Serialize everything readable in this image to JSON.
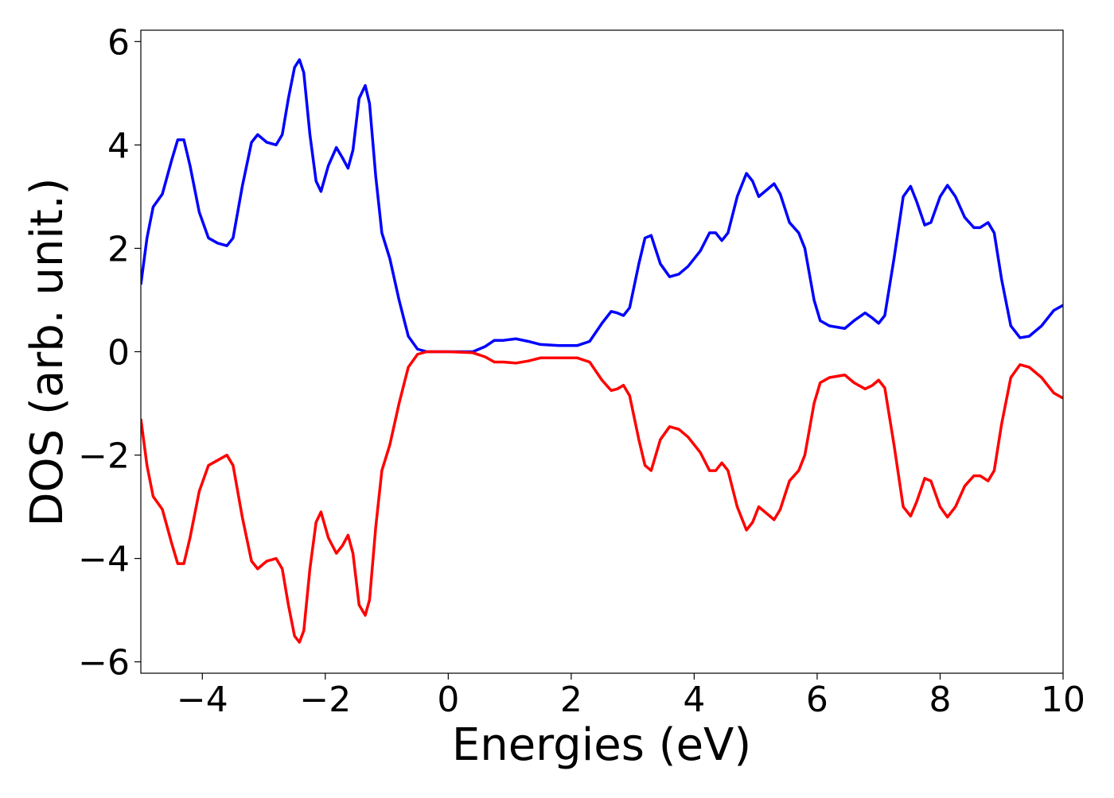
{
  "chart_data": {
    "type": "line",
    "xlabel": "Energies (eV)",
    "ylabel": "DOS (arb. unit.)",
    "xlim": [
      -5,
      10
    ],
    "ylim": [
      -6.22,
      6.22
    ],
    "xticks": [
      {
        "value": -4,
        "label": "−4"
      },
      {
        "value": -2,
        "label": "−2"
      },
      0,
      2,
      4,
      6,
      8,
      10
    ],
    "yticks": [
      {
        "value": -6,
        "label": "−6"
      },
      {
        "value": -4,
        "label": "−4"
      },
      {
        "value": -2,
        "label": "−2"
      },
      0,
      2,
      4,
      6
    ],
    "x": [
      -5,
      -4.9,
      -4.8,
      -4.65,
      -4.5,
      -4.4,
      -4.3,
      -4.2,
      -4.05,
      -3.9,
      -3.75,
      -3.6,
      -3.5,
      -3.35,
      -3.2,
      -3.1,
      -2.95,
      -2.8,
      -2.7,
      -2.6,
      -2.5,
      -2.42,
      -2.35,
      -2.25,
      -2.15,
      -2.07,
      -1.95,
      -1.82,
      -1.72,
      -1.63,
      -1.55,
      -1.45,
      -1.35,
      -1.28,
      -1.18,
      -1.08,
      -0.95,
      -0.8,
      -0.65,
      -0.5,
      -0.35,
      0,
      0.4,
      0.6,
      0.75,
      0.9,
      1.1,
      1.3,
      1.5,
      1.8,
      2.1,
      2.3,
      2.5,
      2.65,
      2.75,
      2.85,
      2.95,
      3.1,
      3.2,
      3.3,
      3.45,
      3.6,
      3.75,
      3.9,
      4.1,
      4.25,
      4.35,
      4.45,
      4.55,
      4.7,
      4.85,
      4.95,
      5.05,
      5.15,
      5.3,
      5.4,
      5.55,
      5.7,
      5.8,
      5.95,
      6.05,
      6.2,
      6.45,
      6.6,
      6.78,
      6.9,
      7.0,
      7.1,
      7.25,
      7.4,
      7.52,
      7.62,
      7.75,
      7.85,
      8.0,
      8.12,
      8.25,
      8.4,
      8.55,
      8.65,
      8.78,
      8.88,
      9.0,
      9.15,
      9.3,
      9.45,
      9.65,
      9.85,
      10
    ],
    "series": [
      {
        "color": "#0000ff",
        "values": [
          1.3,
          2.2,
          2.8,
          3.05,
          3.7,
          4.1,
          4.1,
          3.6,
          2.7,
          2.2,
          2.1,
          2.05,
          2.2,
          3.2,
          4.05,
          4.2,
          4.05,
          4.0,
          4.2,
          4.9,
          5.5,
          5.65,
          5.4,
          4.2,
          3.3,
          3.1,
          3.6,
          3.95,
          3.75,
          3.55,
          3.9,
          4.9,
          5.15,
          4.8,
          3.4,
          2.3,
          1.8,
          1.0,
          0.3,
          0.05,
          0.0,
          0.0,
          0.0,
          0.1,
          0.22,
          0.22,
          0.25,
          0.2,
          0.14,
          0.12,
          0.12,
          0.2,
          0.55,
          0.78,
          0.75,
          0.7,
          0.85,
          1.7,
          2.2,
          2.25,
          1.7,
          1.45,
          1.5,
          1.65,
          1.95,
          2.3,
          2.3,
          2.15,
          2.3,
          3.0,
          3.45,
          3.3,
          3.0,
          3.1,
          3.25,
          3.05,
          2.5,
          2.3,
          2.0,
          1.0,
          0.6,
          0.5,
          0.45,
          0.6,
          0.75,
          0.65,
          0.55,
          0.7,
          1.8,
          3.0,
          3.2,
          2.9,
          2.45,
          2.5,
          3.0,
          3.22,
          3.0,
          2.6,
          2.4,
          2.4,
          2.5,
          2.3,
          1.4,
          0.5,
          0.27,
          0.3,
          0.5,
          0.8,
          0.9
        ]
      },
      {
        "color": "#ff0000",
        "values": [
          -1.3,
          -2.2,
          -2.8,
          -3.05,
          -3.7,
          -4.1,
          -4.1,
          -3.6,
          -2.7,
          -2.2,
          -2.1,
          -2.0,
          -2.2,
          -3.2,
          -4.05,
          -4.2,
          -4.05,
          -4.0,
          -4.2,
          -4.9,
          -5.5,
          -5.62,
          -5.4,
          -4.2,
          -3.3,
          -3.1,
          -3.6,
          -3.9,
          -3.75,
          -3.55,
          -3.9,
          -4.9,
          -5.1,
          -4.8,
          -3.4,
          -2.3,
          -1.8,
          -1.0,
          -0.3,
          -0.05,
          0.0,
          0.0,
          -0.02,
          -0.1,
          -0.2,
          -0.2,
          -0.22,
          -0.18,
          -0.12,
          -0.12,
          -0.12,
          -0.2,
          -0.55,
          -0.75,
          -0.72,
          -0.65,
          -0.85,
          -1.7,
          -2.2,
          -2.3,
          -1.7,
          -1.45,
          -1.5,
          -1.65,
          -1.95,
          -2.3,
          -2.3,
          -2.15,
          -2.3,
          -3.0,
          -3.45,
          -3.3,
          -3.0,
          -3.1,
          -3.25,
          -3.05,
          -2.5,
          -2.3,
          -2.0,
          -1.0,
          -0.6,
          -0.5,
          -0.45,
          -0.6,
          -0.72,
          -0.65,
          -0.55,
          -0.7,
          -1.8,
          -3.0,
          -3.18,
          -2.9,
          -2.45,
          -2.5,
          -3.0,
          -3.2,
          -3.0,
          -2.6,
          -2.4,
          -2.4,
          -2.5,
          -2.3,
          -1.4,
          -0.5,
          -0.25,
          -0.3,
          -0.5,
          -0.8,
          -0.9
        ]
      }
    ]
  }
}
